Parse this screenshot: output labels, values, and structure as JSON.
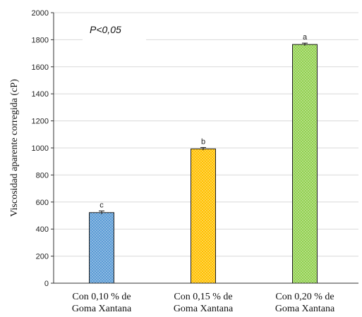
{
  "chart_data": {
    "type": "bar",
    "title": "",
    "xlabel": "",
    "ylabel": "Viscosidad aparente corregida (cP)",
    "ylim": [
      0,
      2000
    ],
    "yticks": [
      0,
      200,
      400,
      600,
      800,
      1000,
      1200,
      1400,
      1600,
      1800,
      2000
    ],
    "grid": true,
    "annotation": "P<0,05",
    "categories": [
      [
        "Con 0,10 % de",
        "Goma Xantana"
      ],
      [
        "Con 0,15 % de",
        "Goma Xantana"
      ],
      [
        "Con 0,20 % de",
        "Goma Xantana"
      ]
    ],
    "values": [
      522,
      993,
      1765
    ],
    "errors": [
      12,
      10,
      10
    ],
    "significance": [
      "c",
      "b",
      "a"
    ],
    "colors": [
      "#5b9bd5",
      "#ffc000",
      "#92d050"
    ]
  }
}
